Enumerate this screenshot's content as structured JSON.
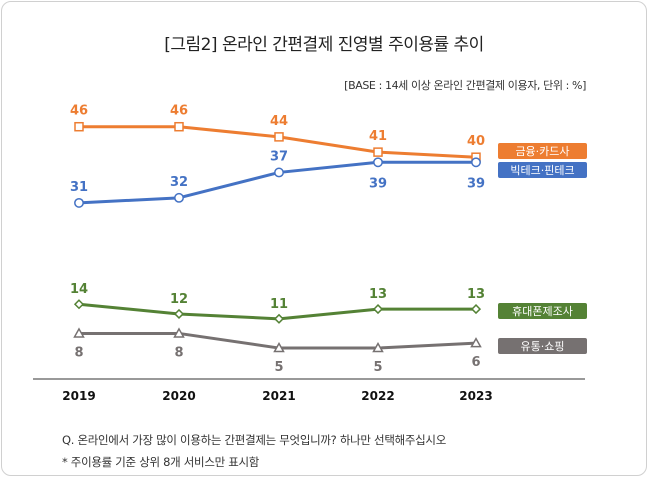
{
  "title": "[그림2] 온라인 간편결제 진영별 주이용률 추이",
  "base_note": "[BASE : 14세 이상 온라인 간편결제 이용자, 단위 : %]",
  "footnotes": {
    "question": "Q. 온라인에서 가장 많이 이용하는 간편결제는 무엇입니까? 하나만 선택해주십시오",
    "note": "* 주이용률 기준 상위 8개 서비스만 표시함"
  },
  "chart_data": {
    "type": "line",
    "title": "[그림2] 온라인 간편결제 진영별 주이용률 추이",
    "xlabel": "",
    "ylabel": "",
    "x": [
      "2019",
      "2020",
      "2021",
      "2022",
      "2023"
    ],
    "grid": false,
    "legend_placement": "right",
    "series": [
      {
        "name": "금융·카드사",
        "values": [
          46,
          46,
          44,
          41,
          40
        ],
        "color": "#ed7d31",
        "marker": "square",
        "labels": [
          "46",
          "46",
          "44",
          "41",
          "40"
        ]
      },
      {
        "name": "빅테크·핀테크",
        "values": [
          31,
          32,
          37,
          39,
          39
        ],
        "color": "#4472c4",
        "marker": "circle",
        "labels": [
          "31",
          "32",
          "37",
          "39",
          "39"
        ]
      },
      {
        "name": "휴대폰제조사",
        "values": [
          14,
          12,
          11,
          13,
          13
        ],
        "color": "#548235",
        "marker": "diamond",
        "labels": [
          "14",
          "12",
          "11",
          "13",
          "13"
        ]
      },
      {
        "name": "유통·쇼핑",
        "values": [
          8,
          8,
          5,
          5,
          6
        ],
        "color": "#767171",
        "marker": "triangle",
        "labels": [
          "8",
          "8",
          "5",
          "5",
          "6"
        ]
      }
    ]
  }
}
